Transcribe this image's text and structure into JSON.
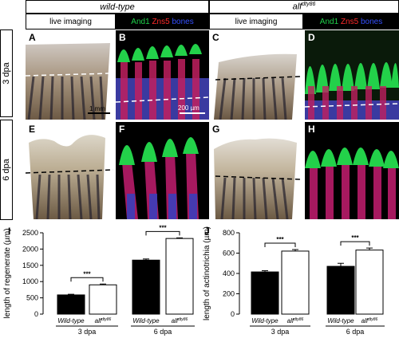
{
  "header": {
    "wild_type": "wild-type",
    "alf_base": "alf",
    "alf_sup": "dty86",
    "live_imaging_1": "live imaging",
    "live_imaging_2": "live imaging",
    "stain_and1": "And1",
    "stain_zns5": "Zns5",
    "stain_bones": "bones",
    "colors": {
      "and1": "#1fd14a",
      "zns5": "#ff2a2a",
      "bones": "#3550ff"
    }
  },
  "rows": {
    "row1": "3 dpa",
    "row2": "6 dpa"
  },
  "panels": {
    "A": "A",
    "B": "B",
    "C": "C",
    "D": "D",
    "E": "E",
    "F": "F",
    "G": "G",
    "H": "H",
    "scale_mm": "1 mm",
    "scale_um": "200 µm"
  },
  "chart_data": [
    {
      "type": "bar",
      "panel": "I",
      "ylabel": "length of regenerate (µm)",
      "ylim": [
        0,
        2500
      ],
      "yticks": [
        0,
        500,
        1000,
        1500,
        2000,
        2500
      ],
      "groups": [
        "3 dpa",
        "6 dpa"
      ],
      "categories": [
        "Wild-type",
        "alf",
        "Wild-type",
        "alf"
      ],
      "category_sups": [
        "",
        "dty86",
        "",
        "dty86"
      ],
      "fills": [
        "#000000",
        "#ffffff",
        "#000000",
        "#ffffff"
      ],
      "values": [
        590,
        900,
        1660,
        2325
      ],
      "errors": [
        20,
        25,
        35,
        20
      ],
      "significance": [
        "***",
        "***"
      ]
    },
    {
      "type": "bar",
      "panel": "J",
      "ylabel": "length of actinotrichia (µm)",
      "ylim": [
        0,
        800
      ],
      "yticks": [
        0,
        200,
        400,
        600,
        800
      ],
      "groups": [
        "3 dpa",
        "6 dpa"
      ],
      "categories": [
        "Wild-type",
        "alf",
        "Wild-type",
        "alf"
      ],
      "category_sups": [
        "",
        "dty86",
        "",
        "dty86"
      ],
      "fills": [
        "#000000",
        "#ffffff",
        "#000000",
        "#ffffff"
      ],
      "values": [
        415,
        620,
        470,
        630
      ],
      "errors": [
        12,
        15,
        30,
        20
      ],
      "significance": [
        "***",
        "***"
      ]
    }
  ]
}
